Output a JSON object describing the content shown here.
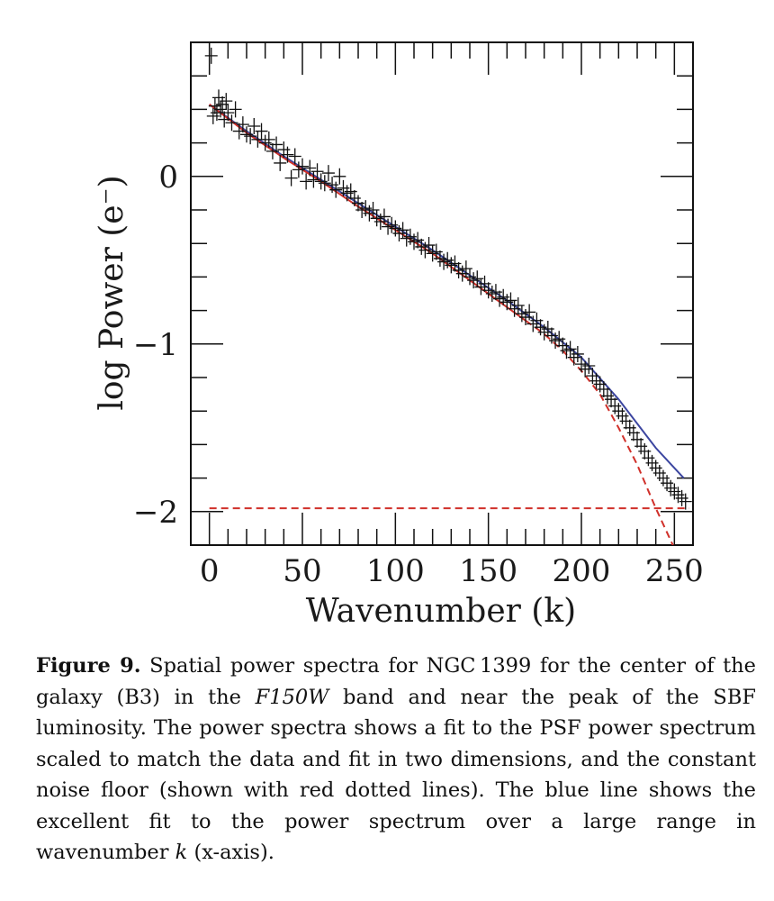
{
  "chart_data": {
    "type": "scatter",
    "title": "",
    "xlabel": "Wavenumber (k)",
    "ylabel": "log Power (e⁻)",
    "xlim": [
      -10,
      260
    ],
    "ylim": [
      -2.2,
      0.8
    ],
    "x_ticks": [
      0,
      50,
      100,
      150,
      200,
      250
    ],
    "x_tick_labels": [
      "0",
      "50",
      "100",
      "150",
      "200",
      "250"
    ],
    "y_ticks": [
      0,
      -1,
      -2
    ],
    "y_tick_labels": [
      "0",
      "−1",
      "−2"
    ],
    "grid": false,
    "series": [
      {
        "name": "power spectrum data",
        "style": "black crosses with error bars",
        "color": "#111111",
        "x": [
          1,
          2,
          3,
          4,
          5,
          6,
          7,
          8,
          9,
          10,
          12,
          14,
          16,
          18,
          20,
          22,
          24,
          26,
          28,
          30,
          32,
          34,
          36,
          38,
          40,
          42,
          44,
          46,
          48,
          50,
          52,
          54,
          56,
          58,
          60,
          62,
          64,
          66,
          68,
          70,
          72,
          74,
          76,
          78,
          80,
          82,
          84,
          86,
          88,
          90,
          92,
          94,
          96,
          98,
          100,
          102,
          104,
          106,
          108,
          110,
          112,
          114,
          116,
          118,
          120,
          122,
          124,
          126,
          128,
          130,
          132,
          134,
          136,
          138,
          140,
          142,
          144,
          146,
          148,
          150,
          152,
          154,
          156,
          158,
          160,
          162,
          164,
          166,
          168,
          170,
          172,
          174,
          176,
          178,
          180,
          182,
          184,
          186,
          188,
          190,
          192,
          194,
          196,
          198,
          200,
          202,
          204,
          206,
          208,
          210,
          212,
          214,
          216,
          218,
          220,
          222,
          224,
          226,
          228,
          230,
          232,
          234,
          236,
          238,
          240,
          242,
          244,
          246,
          248,
          250,
          252,
          254,
          256
        ],
        "y": [
          0.72,
          0.36,
          0.42,
          0.38,
          0.47,
          0.4,
          0.43,
          0.34,
          0.45,
          0.38,
          0.32,
          0.4,
          0.27,
          0.31,
          0.25,
          0.24,
          0.3,
          0.22,
          0.27,
          0.2,
          0.22,
          0.15,
          0.19,
          0.08,
          0.16,
          0.13,
          -0.01,
          0.12,
          0.04,
          0.06,
          -0.03,
          0.05,
          -0.02,
          0.03,
          -0.03,
          -0.04,
          0.02,
          -0.05,
          -0.08,
          0.0,
          -0.07,
          -0.1,
          -0.09,
          -0.13,
          -0.16,
          -0.2,
          -0.19,
          -0.22,
          -0.2,
          -0.25,
          -0.27,
          -0.24,
          -0.3,
          -0.29,
          -0.31,
          -0.34,
          -0.32,
          -0.37,
          -0.36,
          -0.39,
          -0.38,
          -0.42,
          -0.44,
          -0.41,
          -0.46,
          -0.45,
          -0.49,
          -0.51,
          -0.5,
          -0.53,
          -0.52,
          -0.56,
          -0.58,
          -0.55,
          -0.6,
          -0.62,
          -0.61,
          -0.66,
          -0.64,
          -0.68,
          -0.7,
          -0.69,
          -0.73,
          -0.72,
          -0.75,
          -0.74,
          -0.79,
          -0.77,
          -0.82,
          -0.84,
          -0.81,
          -0.88,
          -0.86,
          -0.9,
          -0.93,
          -0.91,
          -0.95,
          -0.98,
          -0.97,
          -1.01,
          -1.04,
          -1.03,
          -1.08,
          -1.06,
          -1.12,
          -1.15,
          -1.13,
          -1.19,
          -1.22,
          -1.24,
          -1.27,
          -1.31,
          -1.33,
          -1.37,
          -1.4,
          -1.43,
          -1.46,
          -1.5,
          -1.53,
          -1.57,
          -1.61,
          -1.64,
          -1.68,
          -1.71,
          -1.74,
          -1.77,
          -1.8,
          -1.83,
          -1.86,
          -1.88,
          -1.9,
          -1.92,
          -1.94
        ]
      },
      {
        "name": "fit to power spectrum",
        "style": "solid line",
        "color": "#3c46a0",
        "x": [
          0,
          20,
          40,
          60,
          80,
          100,
          120,
          140,
          160,
          180,
          200,
          220,
          240,
          255
        ],
        "y": [
          0.43,
          0.27,
          0.12,
          -0.02,
          -0.16,
          -0.3,
          -0.44,
          -0.59,
          -0.74,
          -0.9,
          -1.08,
          -1.33,
          -1.62,
          -1.8
        ]
      },
      {
        "name": "scaled PSF power spectrum",
        "style": "red line (solid then dashed)",
        "color": "#d0302a",
        "x": [
          0,
          20,
          40,
          60,
          80,
          100,
          120,
          140,
          160,
          170,
          180,
          190,
          200,
          210,
          220,
          230,
          240,
          250
        ],
        "y": [
          0.43,
          0.26,
          0.11,
          -0.03,
          -0.18,
          -0.32,
          -0.46,
          -0.62,
          -0.78,
          -0.86,
          -0.94,
          -1.04,
          -1.16,
          -1.3,
          -1.5,
          -1.72,
          -1.98,
          -2.22
        ]
      },
      {
        "name": "constant noise floor",
        "style": "red dashed line",
        "color": "#d0302a",
        "x": [
          0,
          258
        ],
        "y": [
          -1.98,
          -1.98
        ]
      }
    ]
  },
  "caption": {
    "label": "Figure 9.",
    "part1": " Spatial power spectra for NGC 1399 for the center of the galaxy (B3) in the ",
    "band": "F150W",
    "part2": " band and near the peak of the SBF luminosity.  The power spectra shows a fit to the PSF power spectrum scaled to match the data and fit in two dimensions, and the constant noise floor (shown with red dotted lines). The blue line shows the excellent fit to the power spectrum over a large range in wavenumber ",
    "k": "k",
    "part3": " (x-axis)."
  }
}
